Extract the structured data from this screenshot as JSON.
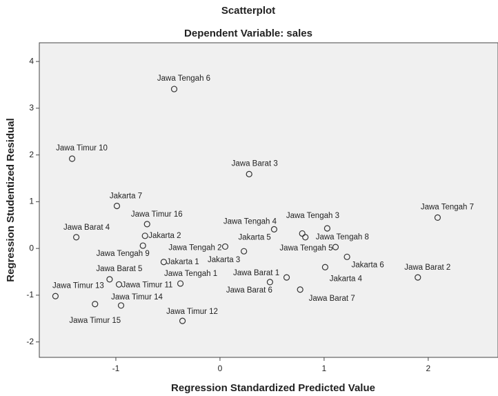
{
  "chart_data": {
    "type": "scatter",
    "title": "Scatterplot",
    "subtitle": "Dependent Variable: sales",
    "x_label": "Regression Standardized Predicted Value",
    "y_label": "Regression Studentized Residual",
    "xlim": [
      -1.735,
      2.67
    ],
    "ylim": [
      -2.33,
      4.4
    ],
    "xticks": [
      -1,
      0,
      1,
      2
    ],
    "yticks": [
      -2,
      -1,
      0,
      1,
      2,
      3,
      4
    ],
    "grid": false,
    "color": "#333333",
    "labels": [
      "Jawa Tengah 6",
      "Jawa Timur 10",
      "Jawa Barat 3",
      "Jakarta 7",
      "Jawa Tengah 7",
      "Jawa Timur 16",
      "Jawa Tengah 4",
      "Jawa Tengah 3",
      "Jawa Barat 4",
      "Jakarta 2",
      "Jakarta 5",
      "Jawa Tengah 8",
      "Jawa Tengah 9",
      "Jawa Tengah 2",
      "Jakarta 3",
      "Jawa Tengah 5",
      "Jakarta 1",
      "Jakarta 6",
      "Jakarta 4",
      "Jawa Barat 2",
      "Jawa Barat 5",
      "Jawa Barat 1",
      "Jawa Timur 11",
      "Jawa Tengah 1",
      "Jawa Barat 6",
      "Jawa Barat 7",
      "Jawa Timur 13",
      "Jawa Timur 14",
      "Jawa Timur 15",
      "Jawa Timur 12"
    ],
    "x": [
      -0.44,
      -1.42,
      0.28,
      -0.99,
      2.09,
      -0.7,
      0.52,
      1.03,
      -1.38,
      -0.72,
      0.79,
      0.82,
      -0.74,
      0.05,
      0.23,
      1.11,
      -0.54,
      1.22,
      1.01,
      1.9,
      -1.06,
      0.64,
      -0.97,
      -0.38,
      0.48,
      0.77,
      -1.58,
      -0.95,
      -1.2,
      -0.36
    ],
    "values": [
      3.41,
      1.92,
      1.59,
      0.91,
      0.66,
      0.52,
      0.41,
      0.43,
      0.24,
      0.27,
      0.32,
      0.24,
      0.06,
      0.04,
      -0.06,
      0.03,
      -0.29,
      -0.18,
      -0.4,
      -0.62,
      -0.66,
      -0.62,
      -0.77,
      -0.75,
      -0.72,
      -0.88,
      -1.02,
      -1.22,
      -1.19,
      -1.55
    ]
  }
}
